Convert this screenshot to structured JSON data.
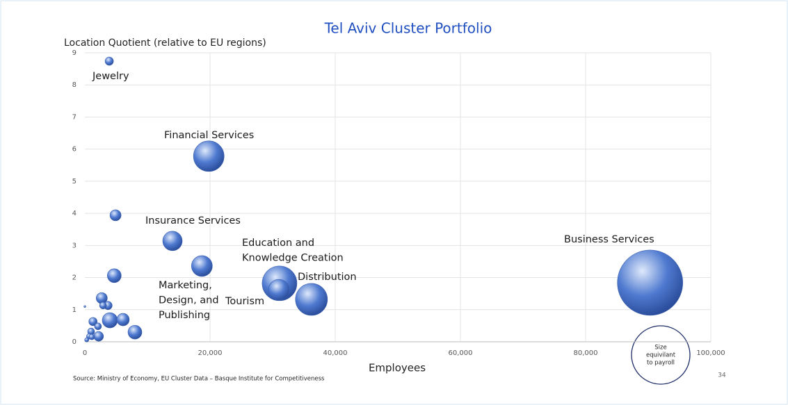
{
  "chart_data": {
    "type": "scatter",
    "title": "Tel Aviv Cluster Portfolio",
    "y_label": "Location Quotient (relative to EU regions)",
    "x_label": "Employees",
    "source": "Source: Ministry of Economy, EU Cluster Data – Basque Institute for Competitiveness",
    "page_number": "34",
    "size_legend": [
      "Size",
      "equivilant",
      "to payroll"
    ],
    "grid": true,
    "xlim": [
      0,
      100000
    ],
    "ylim": [
      0,
      9
    ],
    "xticks": [
      0,
      {
        "value": 20000,
        "label": "20,000"
      },
      {
        "value": 40000,
        "label": "40,000"
      },
      {
        "value": 60000,
        "label": "60,000"
      },
      {
        "value": 80000,
        "label": "80,000"
      },
      {
        "value": 100000,
        "label": "100,000"
      }
    ],
    "yticks": [
      0,
      1,
      2,
      3,
      4,
      5,
      6,
      7,
      8,
      9
    ],
    "annotations": [
      [
        "Jewelry"
      ],
      [
        "Financial Services"
      ],
      [
        "Insurance Services"
      ],
      [
        "Education and",
        "Knowledge Creation"
      ],
      [
        "Distribution"
      ],
      [
        "Business Services"
      ],
      [
        "Marketing,",
        "Design, and",
        "Publishing"
      ],
      [
        "Tourism"
      ]
    ],
    "series": [
      {
        "color": "#4f7ad0",
        "x": [
          3900,
          19800,
          4900,
          14000,
          18700,
          4700,
          31100,
          31000,
          36200,
          90300,
          2700,
          3700,
          2900,
          4000,
          6100,
          8000,
          2200,
          1300,
          2100,
          1000,
          700,
          300,
          0,
          1100
        ],
        "values": [
          8.74,
          5.78,
          3.94,
          3.14,
          2.36,
          2.06,
          1.82,
          1.62,
          1.32,
          1.84,
          1.36,
          1.13,
          1.13,
          0.67,
          0.69,
          0.3,
          0.17,
          0.63,
          0.48,
          0.32,
          0.17,
          0.06,
          1.1,
          0.15
        ],
        "sizes": [
          36,
          484,
          64,
          196,
          225,
          100,
          625,
          225,
          529,
          2209,
          64,
          36,
          25,
          121,
          81,
          100,
          49,
          36,
          25,
          25,
          16,
          9,
          2,
          16
        ]
      }
    ]
  }
}
